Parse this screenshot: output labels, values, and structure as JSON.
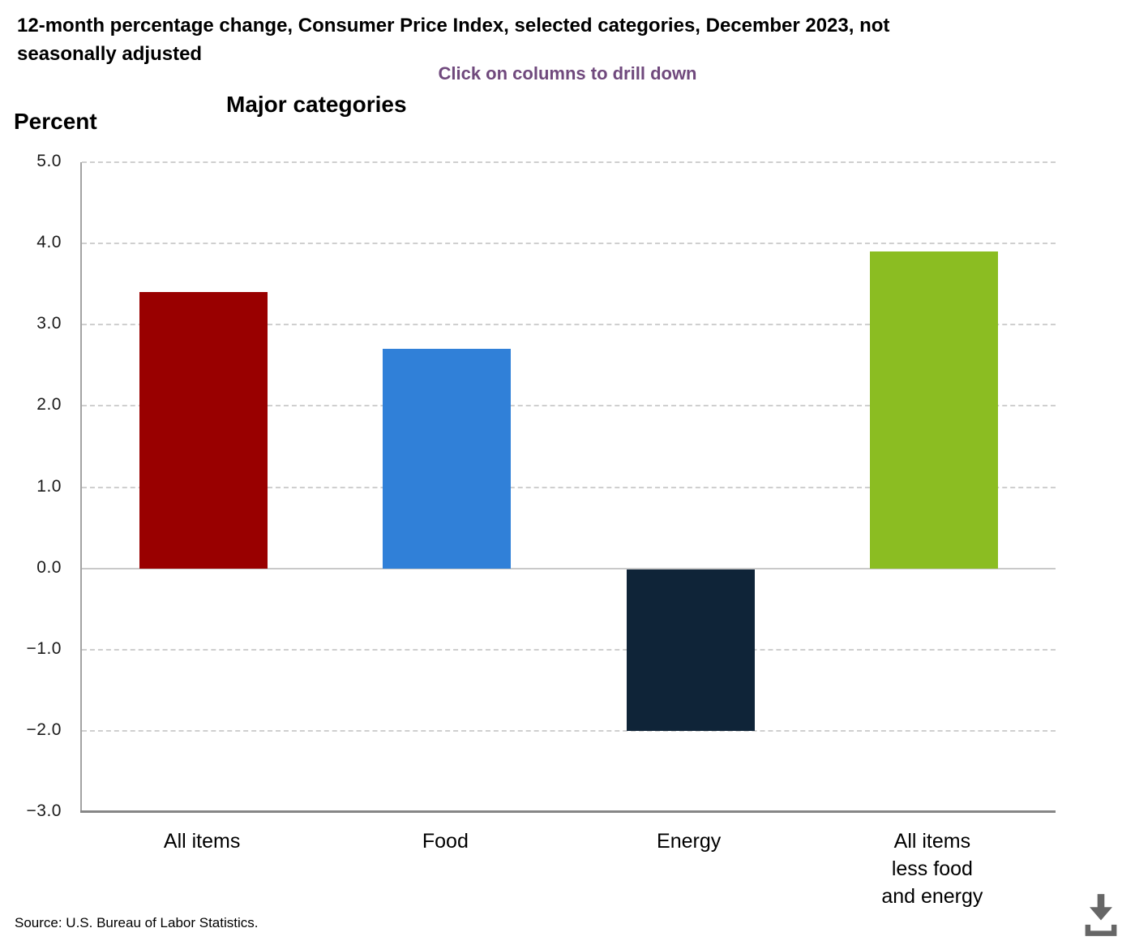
{
  "header": {
    "title": "12-month percentage change, Consumer Price Index, selected categories, December 2023, not\nseasonally adjusted",
    "drill_hint": "Click on columns to drill down",
    "chart_heading": "Major categories",
    "y_axis_title": "Percent"
  },
  "footer": {
    "source": "Source: U.S. Bureau of Labor Statistics.",
    "download_icon": "download-icon"
  },
  "colors": {
    "bar_all_items": "#990000",
    "bar_food": "#3080D8",
    "bar_energy": "#0F2438",
    "bar_all_items_less_food_and_energy": "#8BBD22",
    "drill_hint_text": "#70497D",
    "gridline": "#CFCFCF",
    "zero_line": "#C9C9C9",
    "y_axis_line": "#A3A3A3",
    "x_axis_line": "#868686",
    "download_icon": "#666666"
  },
  "chart_data": {
    "type": "bar",
    "title": "Major categories",
    "xlabel": "",
    "ylabel": "Percent",
    "categories": [
      "All items",
      "Food",
      "Energy",
      "All items less food and energy"
    ],
    "category_lines": [
      [
        "All items"
      ],
      [
        "Food"
      ],
      [
        "Energy"
      ],
      [
        "All items",
        "less food",
        "and energy"
      ]
    ],
    "values": [
      3.4,
      2.7,
      -2.0,
      3.9
    ],
    "bar_colors": [
      "#990000",
      "#3080D8",
      "#0F2438",
      "#8BBD22"
    ],
    "ylim": [
      -3.0,
      5.0
    ],
    "ytick_interval": 1.0,
    "ytick_labels": [
      "5.0",
      "4.0",
      "3.0",
      "2.0",
      "1.0",
      "0.0",
      "−1.0",
      "−2.0",
      "−3.0"
    ],
    "grid": "horizontal-dashed",
    "legend": "none",
    "annotations": "Click on columns to drill down"
  }
}
